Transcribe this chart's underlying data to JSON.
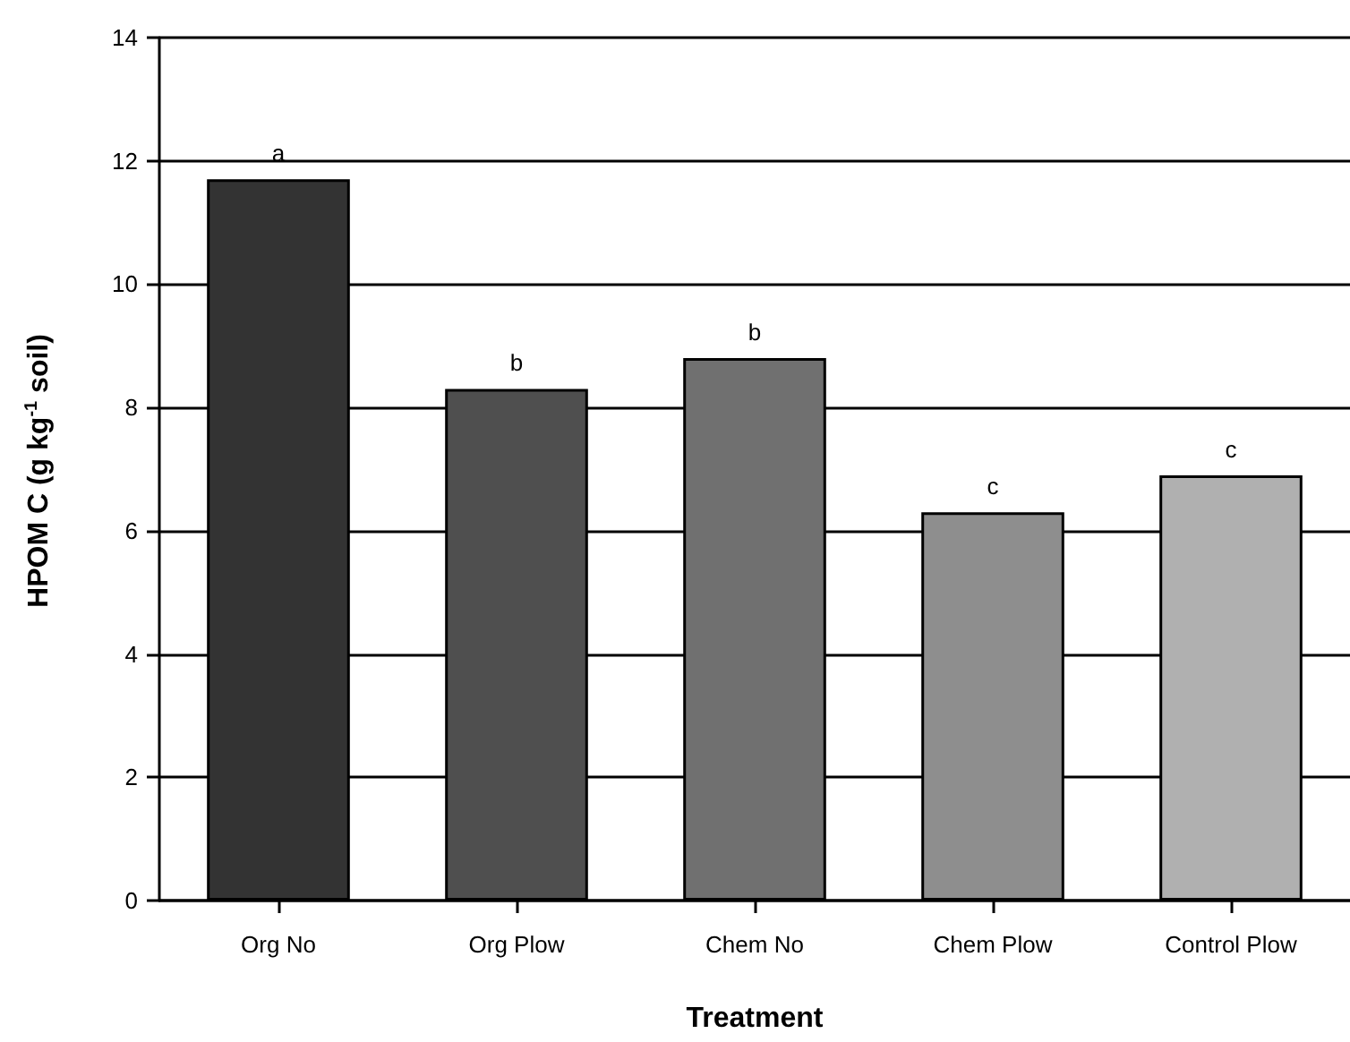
{
  "chart_data": {
    "type": "bar",
    "xlabel": "Treatment",
    "ylabel": "HPOM C (g kg$^{-1}$ soil)",
    "categories": [
      "Org No",
      "Org Plow",
      "Chem No",
      "Chem Plow",
      "Control Plow"
    ],
    "values": [
      11.7,
      8.3,
      8.8,
      6.3,
      6.9
    ],
    "colors": [
      "#333333",
      "#4f4f4f",
      "#707070",
      "#8e8e8e",
      "#b0b0b0"
    ],
    "ylim": [
      0,
      14
    ],
    "yticks": [
      0,
      2,
      4,
      6,
      8,
      10,
      12,
      14
    ],
    "grid": "y",
    "annotations": [
      {
        "text": "a",
        "x": "Org No",
        "y": 11.7
      },
      {
        "text": "b",
        "x": "Org Plow",
        "y": 8.3
      },
      {
        "text": "b",
        "x": "Chem No",
        "y": 8.8
      },
      {
        "text": "c",
        "x": "Chem Plow",
        "y": 6.3
      },
      {
        "text": "c",
        "x": "Control Plow",
        "y": 6.9
      }
    ]
  }
}
